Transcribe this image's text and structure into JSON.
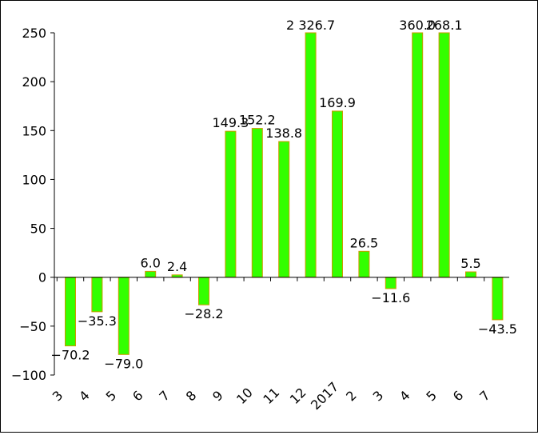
{
  "chart_data": {
    "type": "bar",
    "title": "",
    "xlabel": "",
    "ylabel": "",
    "ylim": [
      -100,
      250
    ],
    "yticks": [
      "250",
      "200",
      "150",
      "100",
      "50",
      "0",
      "−50",
      "−100"
    ],
    "ytick_values": [
      250,
      200,
      150,
      100,
      50,
      0,
      -50,
      -100
    ],
    "categories": [
      "3",
      "4",
      "5",
      "6",
      "7",
      "8",
      "9",
      "10",
      "11",
      "12",
      "2017",
      "2",
      "3",
      "4",
      "5",
      "6",
      "7"
    ],
    "values": [
      -70.2,
      -35.3,
      -79.0,
      6.0,
      2.4,
      -28.2,
      149.3,
      152.2,
      138.8,
      2326.7,
      169.9,
      26.5,
      -11.6,
      360.0,
      268.1,
      5.5,
      -43.5
    ],
    "data_labels": [
      "−70.2",
      "−35.3",
      "−79.0",
      "6.0",
      "2.4",
      "−28.2",
      "149.3",
      "152.2",
      "138.8",
      "2 326.7",
      "169.9",
      "26.5",
      "−11.6",
      "360.0",
      "268.1",
      "5.5",
      "−43.5"
    ],
    "grid": false,
    "legend": "none",
    "bar_color": "#33FF00",
    "bar_edge_color": "#CC9900"
  }
}
